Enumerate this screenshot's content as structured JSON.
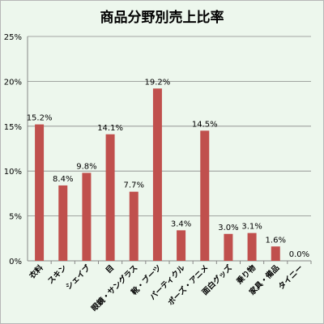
{
  "chart_data": {
    "type": "bar",
    "title": "商品分野別売上比率",
    "xlabel": "",
    "ylabel": "",
    "categories": [
      "衣料",
      "スキン",
      "シェイブ",
      "目",
      "眼鏡・サングラス",
      "靴・ブーツ",
      "パーティクル",
      "ポーズ・アニメ",
      "面白グッズ",
      "乗り物",
      "家具・備品",
      "タイニー"
    ],
    "values": [
      15.2,
      8.4,
      9.8,
      14.1,
      7.7,
      19.2,
      3.4,
      14.5,
      3.0,
      3.1,
      1.6,
      0.0
    ],
    "data_labels": [
      "15.2%",
      "8.4%",
      "9.8%",
      "14.1%",
      "7.7%",
      "19.2%",
      "3.4%",
      "14.5%",
      "3.0%",
      "3.1%",
      "1.6%",
      "0.0%"
    ],
    "ylim": [
      0,
      25
    ],
    "yticks": [
      0,
      5,
      10,
      15,
      20,
      25
    ],
    "ytick_labels": [
      "0%",
      "5%",
      "10%",
      "15%",
      "20%",
      "25%"
    ],
    "grid": true,
    "legend": "none",
    "colors": {
      "bar": "#c0504d",
      "background": "#edf7ed",
      "grid": "#888888",
      "text": "#000000"
    }
  }
}
